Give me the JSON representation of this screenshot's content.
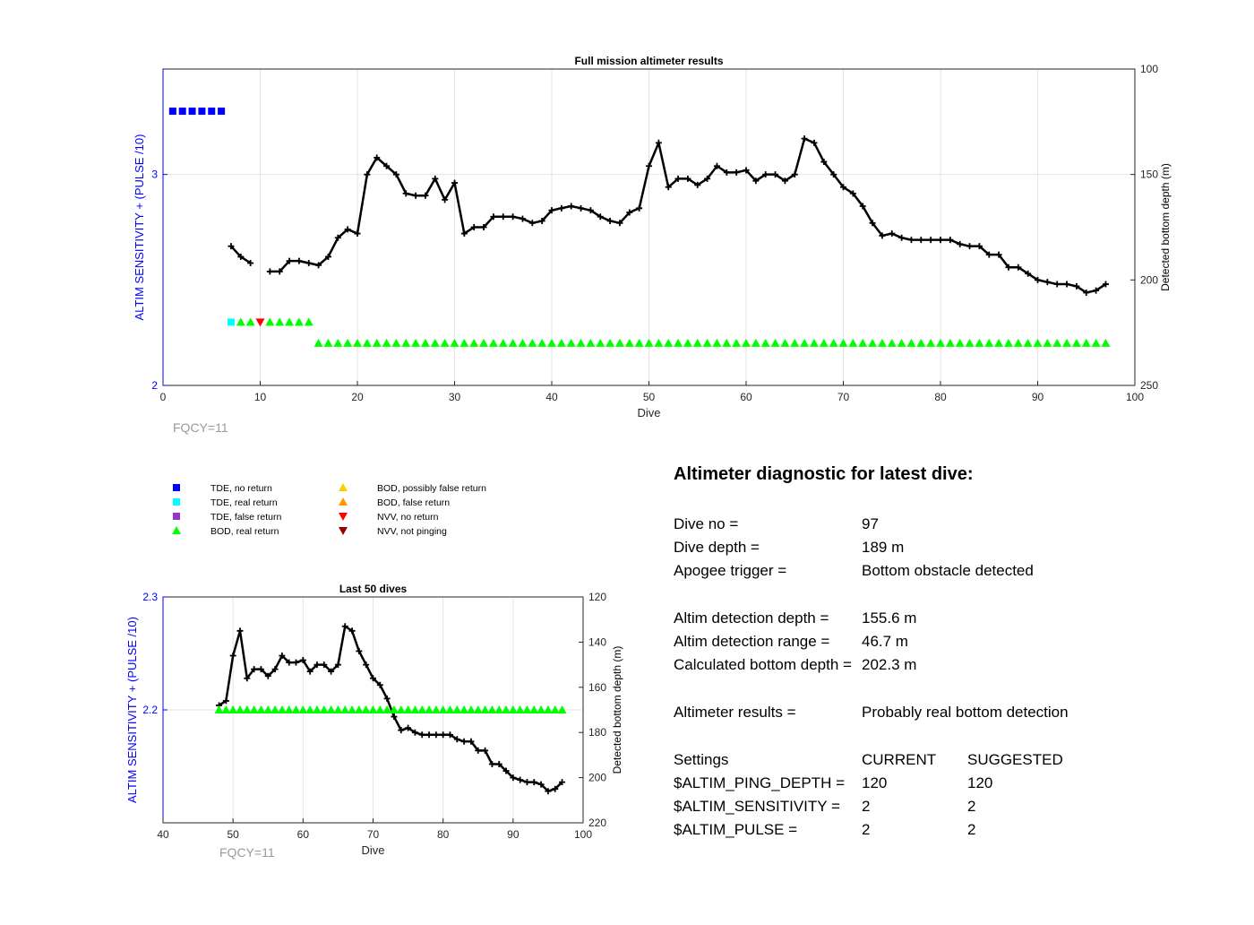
{
  "chart_data": [
    {
      "type": "line",
      "title": "Full mission altimeter results",
      "xlabel": "Dive",
      "ylabel_left": "ALTIM SENSITIVITY + (PULSE /10)",
      "ylabel_right": "Detected bottom depth (m)",
      "xlim": [
        0,
        100
      ],
      "xticks": [
        "0",
        "10",
        "20",
        "30",
        "40",
        "50",
        "60",
        "70",
        "80",
        "90",
        "100"
      ],
      "ylim_left": [
        2,
        3.5
      ],
      "yticks_left": [
        "2",
        "3"
      ],
      "ylim_right": [
        250,
        100
      ],
      "yticks_right": [
        "100",
        "150",
        "200",
        "250"
      ],
      "grid": true,
      "annotation": "FQCY=11",
      "series": [
        {
          "name": "Detected bottom depth",
          "axis": "right",
          "segments": [
            {
              "x": [
                7,
                8,
                9
              ],
              "y": [
                184,
                189,
                192
              ]
            },
            {
              "x": [
                11,
                12,
                13,
                14,
                15,
                16,
                17,
                18,
                19,
                20,
                21,
                22,
                23,
                24,
                25,
                26,
                27,
                28,
                29,
                30,
                31,
                32,
                33,
                34,
                35,
                36,
                37,
                38,
                39,
                40,
                41,
                42,
                43,
                44,
                45,
                46,
                47,
                48,
                49,
                50,
                51,
                52,
                53,
                54,
                55,
                56,
                57,
                58,
                59,
                60,
                61,
                62,
                63,
                64,
                65,
                66,
                67,
                68,
                69,
                70,
                71,
                72,
                73,
                74,
                75,
                76,
                77,
                78,
                79,
                80,
                81,
                82,
                83,
                84,
                85,
                86,
                87,
                88,
                89,
                90,
                91,
                92,
                93,
                94,
                95,
                96,
                97
              ],
              "y": [
                196,
                196,
                191,
                191,
                192,
                193,
                189,
                180,
                176,
                178,
                150,
                142,
                146,
                150,
                159,
                160,
                160,
                152,
                162,
                154,
                178,
                175,
                175,
                170,
                170,
                170,
                171,
                173,
                172,
                167,
                166,
                165,
                166,
                167,
                170,
                172,
                173,
                168,
                166,
                146,
                135,
                156,
                152,
                152,
                155,
                152,
                146,
                149,
                149,
                148,
                153,
                150,
                150,
                153,
                150,
                133,
                135,
                144,
                150,
                156,
                159,
                165,
                173,
                179,
                178,
                180,
                181,
                181,
                181,
                181,
                181,
                183,
                184,
                184,
                188,
                188,
                194,
                194,
                197,
                200,
                201,
                202,
                202,
                203,
                206,
                205,
                202
              ]
            }
          ]
        },
        {
          "name": "TDE, no return",
          "axis": "left",
          "marker": "square",
          "color": "#0000ff",
          "x": [
            1,
            2,
            3,
            4,
            5,
            6
          ],
          "y": [
            3.3,
            3.3,
            3.3,
            3.3,
            3.3,
            3.3
          ]
        },
        {
          "name": "TDE, real return",
          "axis": "left",
          "marker": "square",
          "color": "#00ffff",
          "x": [
            7
          ],
          "y": [
            2.3
          ]
        },
        {
          "name": "BOD, real return",
          "axis": "left",
          "marker": "triangle-up",
          "color": "#00ff00",
          "x": [
            8,
            9,
            11,
            12,
            13,
            14,
            15,
            16,
            17,
            18,
            19,
            20,
            21,
            22,
            23,
            24,
            25,
            26,
            27,
            28,
            29,
            30,
            31,
            32,
            33,
            34,
            35,
            36,
            37,
            38,
            39,
            40,
            41,
            42,
            43,
            44,
            45,
            46,
            47,
            48,
            49,
            50,
            51,
            52,
            53,
            54,
            55,
            56,
            57,
            58,
            59,
            60,
            61,
            62,
            63,
            64,
            65,
            66,
            67,
            68,
            69,
            70,
            71,
            72,
            73,
            74,
            75,
            76,
            77,
            78,
            79,
            80,
            81,
            82,
            83,
            84,
            85,
            86,
            87,
            88,
            89,
            90,
            91,
            92,
            93,
            94,
            95,
            96,
            97
          ],
          "y": [
            2.3,
            2.3,
            2.3,
            2.3,
            2.3,
            2.3,
            2.3,
            2.2,
            2.2,
            2.2,
            2.2,
            2.2,
            2.2,
            2.2,
            2.2,
            2.2,
            2.2,
            2.2,
            2.2,
            2.2,
            2.2,
            2.2,
            2.2,
            2.2,
            2.2,
            2.2,
            2.2,
            2.2,
            2.2,
            2.2,
            2.2,
            2.2,
            2.2,
            2.2,
            2.2,
            2.2,
            2.2,
            2.2,
            2.2,
            2.2,
            2.2,
            2.2,
            2.2,
            2.2,
            2.2,
            2.2,
            2.2,
            2.2,
            2.2,
            2.2,
            2.2,
            2.2,
            2.2,
            2.2,
            2.2,
            2.2,
            2.2,
            2.2,
            2.2,
            2.2,
            2.2,
            2.2,
            2.2,
            2.2,
            2.2,
            2.2,
            2.2,
            2.2,
            2.2,
            2.2,
            2.2,
            2.2,
            2.2,
            2.2,
            2.2,
            2.2,
            2.2,
            2.2,
            2.2,
            2.2,
            2.2,
            2.2,
            2.2,
            2.2,
            2.2,
            2.2,
            2.2,
            2.2,
            2.2
          ]
        },
        {
          "name": "NVV, no return",
          "axis": "left",
          "marker": "triangle-down",
          "color": "#ff0000",
          "x": [
            10
          ],
          "y": [
            2.3
          ]
        }
      ]
    },
    {
      "type": "line",
      "title": "Last 50 dives",
      "xlabel": "Dive",
      "ylabel_left": "ALTIM SENSITIVITY + (PULSE /10)",
      "ylabel_right": "Detected bottom depth (m)",
      "xlim": [
        40,
        100
      ],
      "xticks": [
        "40",
        "50",
        "60",
        "70",
        "80",
        "90",
        "100"
      ],
      "ylim_left": [
        2.1,
        2.3
      ],
      "yticks_left": [
        "2.2",
        "2.3"
      ],
      "ylim_right": [
        220,
        120
      ],
      "yticks_right": [
        "120",
        "140",
        "160",
        "180",
        "200",
        "220"
      ],
      "grid": true,
      "annotation": "FQCY=11",
      "series": [
        {
          "name": "Detected bottom depth",
          "axis": "right",
          "x": [
            48,
            49,
            50,
            51,
            52,
            53,
            54,
            55,
            56,
            57,
            58,
            59,
            60,
            61,
            62,
            63,
            64,
            65,
            66,
            67,
            68,
            69,
            70,
            71,
            72,
            73,
            74,
            75,
            76,
            77,
            78,
            79,
            80,
            81,
            82,
            83,
            84,
            85,
            86,
            87,
            88,
            89,
            90,
            91,
            92,
            93,
            94,
            95,
            96,
            97
          ],
          "y": [
            168,
            166,
            146,
            135,
            156,
            152,
            152,
            155,
            152,
            146,
            149,
            149,
            148,
            153,
            150,
            150,
            153,
            150,
            133,
            135,
            144,
            150,
            156,
            159,
            165,
            173,
            179,
            178,
            180,
            181,
            181,
            181,
            181,
            181,
            183,
            184,
            184,
            188,
            188,
            194,
            194,
            197,
            200,
            201,
            202,
            202,
            203,
            206,
            205,
            202
          ]
        },
        {
          "name": "BOD, real return",
          "axis": "left",
          "marker": "triangle-up",
          "color": "#00ff00",
          "x": [
            48,
            49,
            50,
            51,
            52,
            53,
            54,
            55,
            56,
            57,
            58,
            59,
            60,
            61,
            62,
            63,
            64,
            65,
            66,
            67,
            68,
            69,
            70,
            71,
            72,
            73,
            74,
            75,
            76,
            77,
            78,
            79,
            80,
            81,
            82,
            83,
            84,
            85,
            86,
            87,
            88,
            89,
            90,
            91,
            92,
            93,
            94,
            95,
            96,
            97
          ],
          "y": [
            2.2,
            2.2,
            2.2,
            2.2,
            2.2,
            2.2,
            2.2,
            2.2,
            2.2,
            2.2,
            2.2,
            2.2,
            2.2,
            2.2,
            2.2,
            2.2,
            2.2,
            2.2,
            2.2,
            2.2,
            2.2,
            2.2,
            2.2,
            2.2,
            2.2,
            2.2,
            2.2,
            2.2,
            2.2,
            2.2,
            2.2,
            2.2,
            2.2,
            2.2,
            2.2,
            2.2,
            2.2,
            2.2,
            2.2,
            2.2,
            2.2,
            2.2,
            2.2,
            2.2,
            2.2,
            2.2,
            2.2,
            2.2,
            2.2,
            2.2
          ]
        }
      ]
    }
  ],
  "legend": [
    {
      "label": "TDE, no return",
      "marker": "square",
      "color": "#0000ff"
    },
    {
      "label": "TDE, real return",
      "marker": "square",
      "color": "#00ffff"
    },
    {
      "label": "TDE, false return",
      "marker": "square",
      "color": "#9933cc"
    },
    {
      "label": "BOD, real return",
      "marker": "triangle-up",
      "color": "#00ff00"
    },
    {
      "label": "BOD, possibly false return",
      "marker": "triangle-up",
      "color": "#ffcc00"
    },
    {
      "label": "BOD, false return",
      "marker": "triangle-up",
      "color": "#ff9900"
    },
    {
      "label": "NVV, no return",
      "marker": "triangle-down",
      "color": "#ff0000"
    },
    {
      "label": "NVV, not pinging",
      "marker": "triangle-down",
      "color": "#990000"
    }
  ],
  "diagnostic": {
    "title": "Altimeter diagnostic for latest dive:",
    "dive_no_label": "Dive no =",
    "dive_no": "97",
    "dive_depth_label": "Dive depth =",
    "dive_depth": "189 m",
    "apogee_label": "Apogee trigger =",
    "apogee": "Bottom obstacle detected",
    "altim_depth_label": "Altim detection depth =",
    "altim_depth": "155.6 m",
    "altim_range_label": "Altim detection range =",
    "altim_range": "46.7 m",
    "calc_bottom_label": "Calculated bottom depth =",
    "calc_bottom": "202.3 m",
    "results_label": "Altimeter results =",
    "results": "Probably real bottom detection",
    "settings_label": "Settings",
    "current_label": "CURRENT",
    "suggested_label": "SUGGESTED",
    "settings": [
      {
        "name": "$ALTIM_PING_DEPTH =",
        "current": "120",
        "suggested": "120"
      },
      {
        "name": "$ALTIM_SENSITIVITY =",
        "current": "2",
        "suggested": "2"
      },
      {
        "name": "$ALTIM_PULSE =",
        "current": "2",
        "suggested": "2"
      }
    ]
  }
}
